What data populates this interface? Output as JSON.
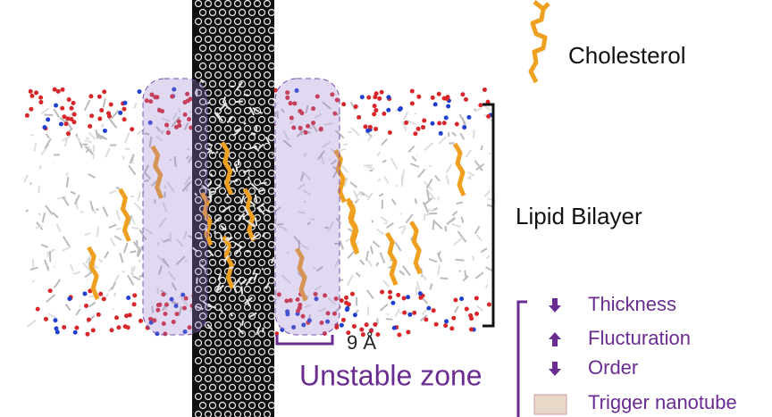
{
  "legend": {
    "cholesterol": "Cholesterol",
    "lipid_bilayer": "Lipid Bilayer"
  },
  "measurement": {
    "label": "9 Å",
    "zone": "Unstable zone"
  },
  "effects": [
    "Thickness",
    "Flucturation",
    "Order",
    "Trigger nanotube"
  ]
}
